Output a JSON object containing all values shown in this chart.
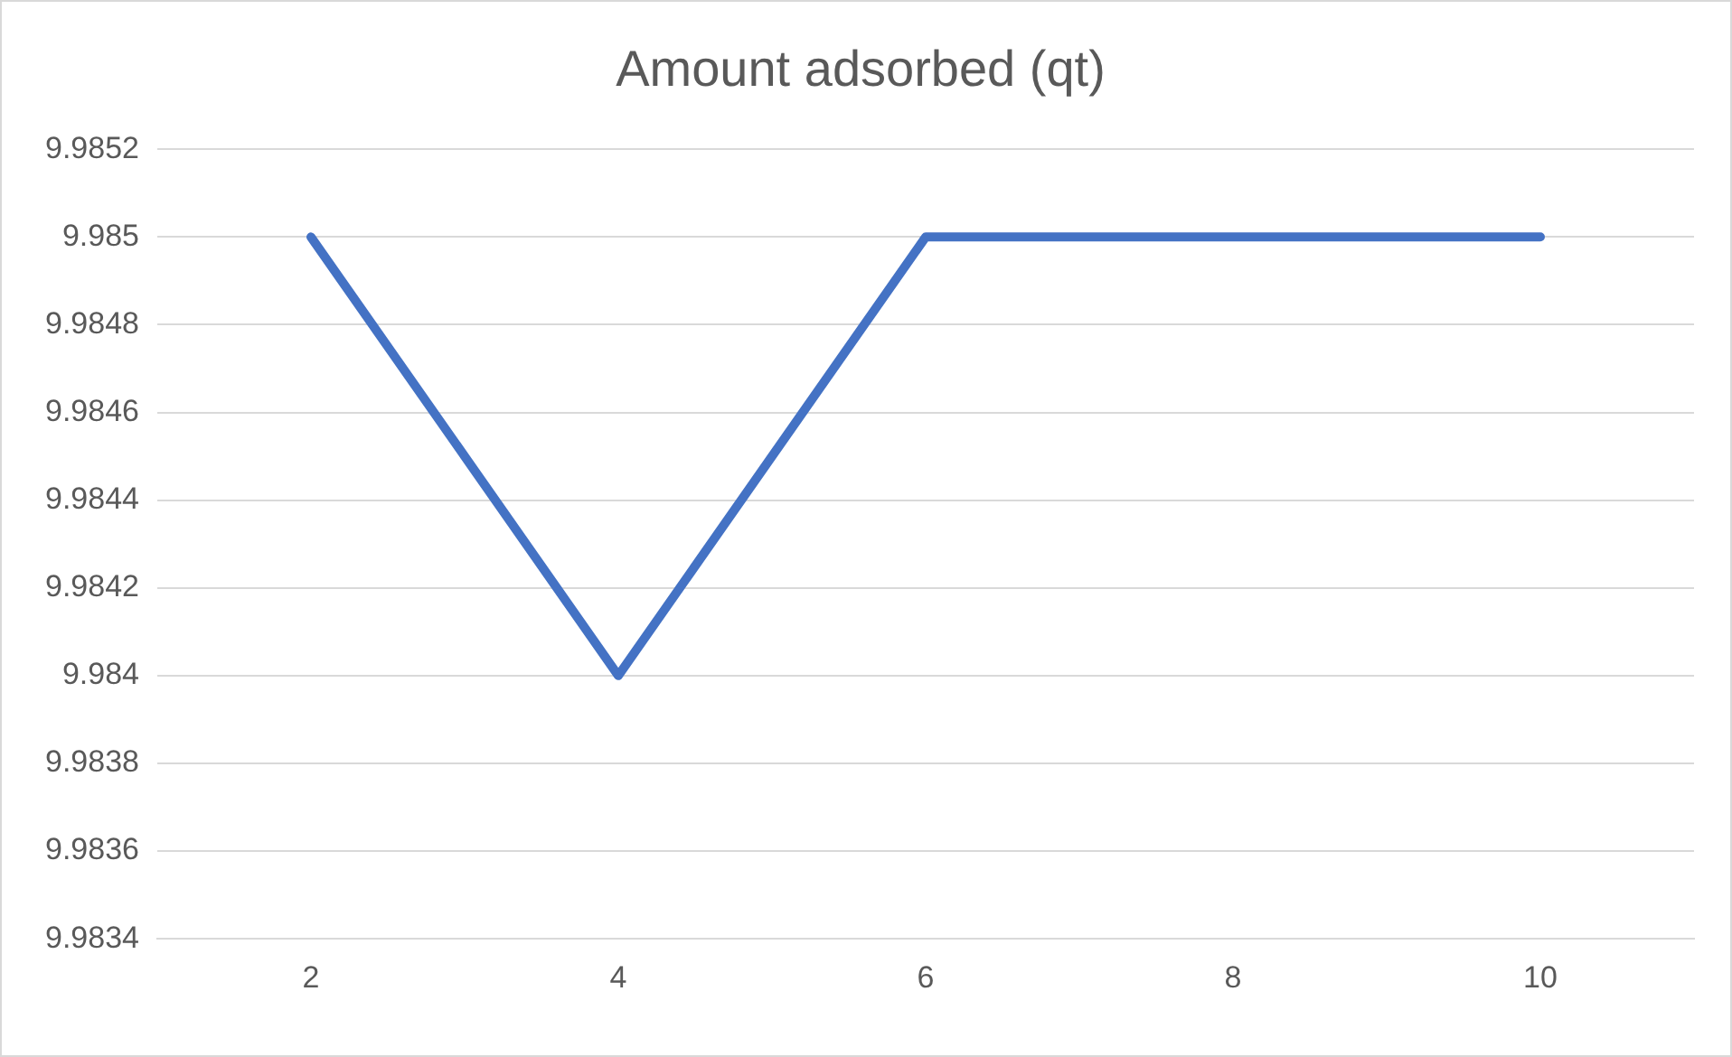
{
  "chart_data": {
    "type": "line",
    "title": "Amount adsorbed (qt)",
    "categories": [
      "2",
      "4",
      "6",
      "8",
      "10"
    ],
    "series": [
      {
        "color": "#4472c4",
        "values": [
          9.985,
          9.984,
          9.985,
          9.985,
          9.985
        ]
      }
    ],
    "ylim": [
      9.9834,
      9.9852
    ],
    "yticks": [
      9.9834,
      9.9836,
      9.9838,
      9.984,
      9.9842,
      9.9844,
      9.9846,
      9.9848,
      9.985,
      9.9852
    ],
    "grid": "y",
    "legend": false,
    "marker": "none",
    "line_style": "solid"
  }
}
